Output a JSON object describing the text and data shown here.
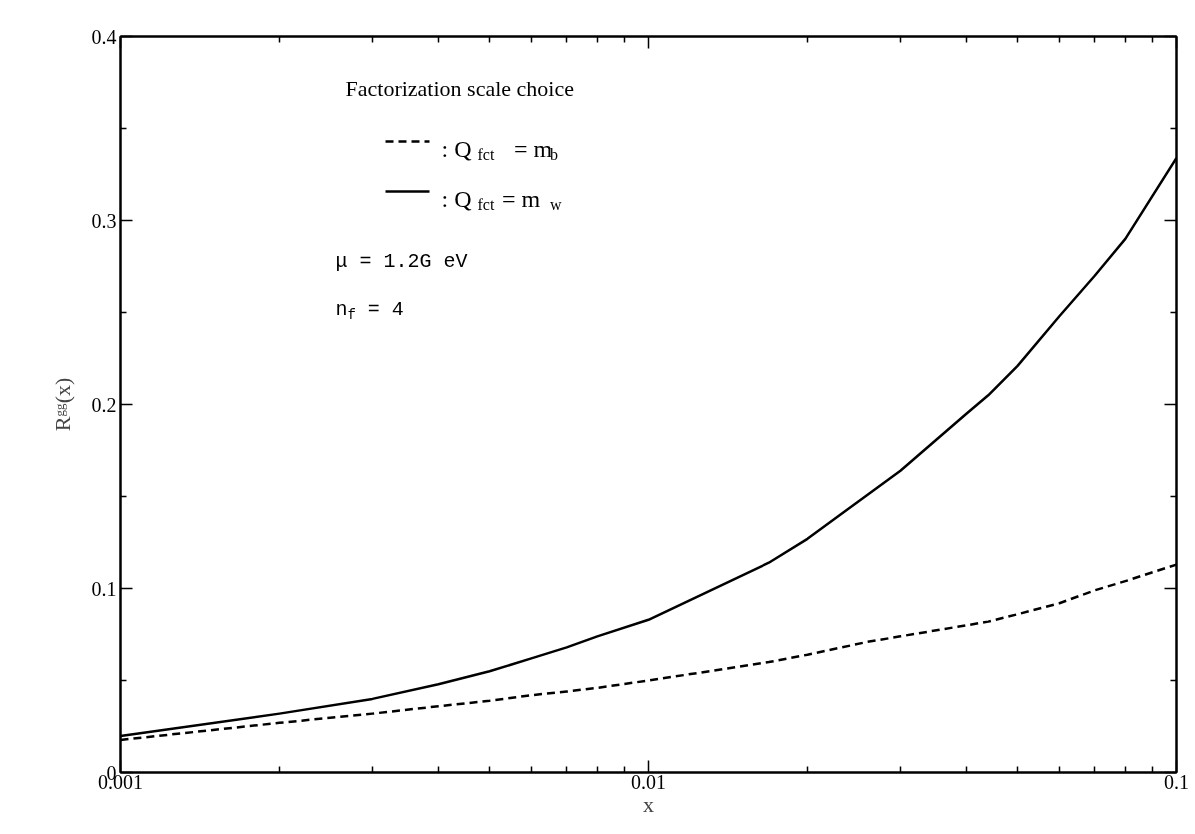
{
  "chart_data": {
    "type": "line",
    "xlabel": "x",
    "ylabel": "Rᵍᵍ(x)",
    "legend_title": "Factorization scale choice",
    "x": [
      0.001,
      0.002,
      0.003,
      0.004,
      0.005,
      0.006,
      0.007,
      0.008,
      0.01,
      0.0169,
      0.02,
      0.026,
      0.03,
      0.04,
      0.044,
      0.05,
      0.06,
      0.07,
      0.08,
      0.1
    ],
    "series": [
      {
        "name": ": Q$_{fct}$ = m$_{b}$",
        "color": "#000000",
        "line_style": "dashed",
        "values": [
          0.0177,
          0.027,
          0.032,
          0.036,
          0.039,
          0.042,
          0.044,
          0.046,
          0.05,
          0.06,
          0.064,
          0.071,
          0.074,
          0.08,
          0.082,
          0.086,
          0.092,
          0.099,
          0.104,
          0.113
        ]
      },
      {
        "name": ": Q$_{fct}$= m $_{w}$",
        "color": "#000000",
        "line_style": "solid",
        "values": [
          0.0198,
          0.032,
          0.04,
          0.048,
          0.055,
          0.062,
          0.068,
          0.074,
          0.083,
          0.114,
          0.127,
          0.151,
          0.164,
          0.195,
          0.205,
          0.221,
          0.248,
          0.27,
          0.29,
          0.334
        ]
      }
    ],
    "xlim": [
      0.001,
      0.1
    ],
    "xticks": [
      0.001,
      0.01,
      0.1
    ],
    "log": "x",
    "ylim": [
      0,
      0.4
    ],
    "yticks": [
      0,
      0.1,
      0.2,
      0.3,
      0.4
    ],
    "grid": false,
    "legend": "top left",
    "marker": "none",
    "annotations": [
      "μ = 1.2G eV",
      "n$_{f}$ = 4"
    ]
  }
}
